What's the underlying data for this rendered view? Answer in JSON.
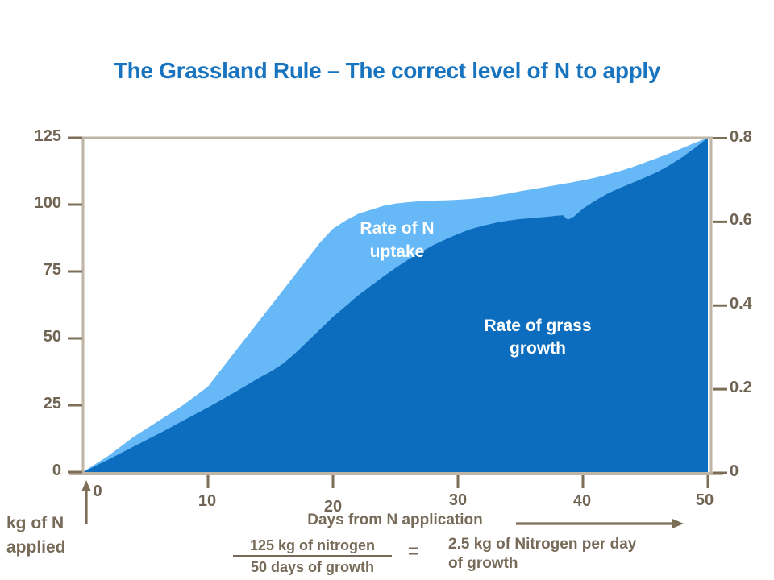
{
  "chart_data": {
    "type": "area",
    "title": "The Grassland Rule – The correct level of N to apply",
    "xlabel": "Days from N application",
    "ylabel_left": "kg of N applied",
    "xlim": [
      0,
      50
    ],
    "ylim_left": [
      0,
      125
    ],
    "ylim_right": [
      0,
      0.8
    ],
    "grid": false,
    "legend_position": "labels-inside-areas",
    "x_axis": {
      "title": "Days from N application",
      "ticks": [
        {
          "label": "0",
          "value": 0
        },
        {
          "label": "10",
          "value": 10
        },
        {
          "label": "20",
          "value": 20
        },
        {
          "label": "30",
          "value": 30
        },
        {
          "label": "40",
          "value": 40
        },
        {
          "label": "50",
          "value": 50
        }
      ]
    },
    "left_axis": {
      "title_line1": "kg of N",
      "title_line2": "applied",
      "ticks": [
        {
          "label": "0",
          "value": 0
        },
        {
          "label": "25",
          "value": 25
        },
        {
          "label": "50",
          "value": 50
        },
        {
          "label": "75",
          "value": 75
        },
        {
          "label": "100",
          "value": 100
        },
        {
          "label": "125",
          "value": 125
        }
      ]
    },
    "right_axis": {
      "ticks": [
        {
          "label": "0",
          "value": 0
        },
        {
          "label": "0.2",
          "value": 0.2
        },
        {
          "label": "0.4",
          "value": 0.4
        },
        {
          "label": "0.6",
          "value": 0.6
        },
        {
          "label": "0.8",
          "value": 0.8
        }
      ]
    },
    "series": [
      {
        "name": "Rate of N uptake",
        "fill": "#66B8F6",
        "points": [
          [
            0,
            0
          ],
          [
            1,
            3
          ],
          [
            2,
            6
          ],
          [
            3,
            9.5
          ],
          [
            4,
            13
          ],
          [
            5,
            16
          ],
          [
            6,
            19
          ],
          [
            7,
            22
          ],
          [
            8,
            25
          ],
          [
            9,
            28.5
          ],
          [
            10,
            32
          ],
          [
            11,
            38
          ],
          [
            12,
            44
          ],
          [
            13,
            50
          ],
          [
            14,
            56
          ],
          [
            15,
            62
          ],
          [
            16,
            68
          ],
          [
            17,
            74
          ],
          [
            18,
            80
          ],
          [
            19,
            86
          ],
          [
            20,
            91
          ],
          [
            21,
            94
          ],
          [
            22,
            96.5
          ],
          [
            23,
            98
          ],
          [
            24,
            99.5
          ],
          [
            25,
            100.4
          ],
          [
            26,
            100.9
          ],
          [
            27,
            101.3
          ],
          [
            28,
            101.5
          ],
          [
            29,
            101.6
          ],
          [
            30,
            101.8
          ],
          [
            31,
            102.1
          ],
          [
            32,
            102.6
          ],
          [
            33,
            103.3
          ],
          [
            34,
            104.1
          ],
          [
            35,
            105
          ],
          [
            36,
            105.8
          ],
          [
            37,
            106.6
          ],
          [
            38,
            107.4
          ],
          [
            39,
            108.2
          ],
          [
            40,
            109.1
          ],
          [
            41,
            110.1
          ],
          [
            42,
            111.3
          ],
          [
            43,
            112.6
          ],
          [
            44,
            114.1
          ],
          [
            45,
            115.8
          ],
          [
            46,
            117.5
          ],
          [
            47,
            119.3
          ],
          [
            48,
            121.2
          ],
          [
            49,
            123.2
          ],
          [
            50,
            125
          ]
        ]
      },
      {
        "name": "Rate of grass growth",
        "fill": "#0C6DBE",
        "points": [
          [
            0,
            0
          ],
          [
            1,
            2.3
          ],
          [
            2,
            4.6
          ],
          [
            3,
            7
          ],
          [
            4,
            9.4
          ],
          [
            5,
            11.8
          ],
          [
            6,
            14.2
          ],
          [
            7,
            16.7
          ],
          [
            8,
            19.2
          ],
          [
            9,
            21.7
          ],
          [
            10,
            24.2
          ],
          [
            11,
            26.8
          ],
          [
            12,
            29.5
          ],
          [
            13,
            32.2
          ],
          [
            14,
            35
          ],
          [
            15,
            37.5
          ],
          [
            16,
            40.5
          ],
          [
            17,
            44.5
          ],
          [
            18,
            49
          ],
          [
            19,
            53.5
          ],
          [
            20,
            58
          ],
          [
            21,
            62
          ],
          [
            22,
            66
          ],
          [
            23,
            69.5
          ],
          [
            24,
            73
          ],
          [
            25,
            76.3
          ],
          [
            26,
            79.4
          ],
          [
            27,
            82.2
          ],
          [
            28,
            84.8
          ],
          [
            29,
            87
          ],
          [
            30,
            89
          ],
          [
            31,
            90.8
          ],
          [
            32,
            92.1
          ],
          [
            33,
            93.2
          ],
          [
            34,
            94
          ],
          [
            35,
            94.6
          ],
          [
            36,
            95
          ],
          [
            37,
            95.4
          ],
          [
            38,
            95.9
          ],
          [
            38.4,
            96
          ],
          [
            38.8,
            94.3
          ],
          [
            39.3,
            95.6
          ],
          [
            40,
            98.5
          ],
          [
            41,
            101.5
          ],
          [
            42,
            104.2
          ],
          [
            43,
            106.3
          ],
          [
            44,
            108.2
          ],
          [
            45,
            110.2
          ],
          [
            46,
            112.3
          ],
          [
            47,
            114.9
          ],
          [
            48,
            117.9
          ],
          [
            49,
            121.3
          ],
          [
            50,
            125
          ]
        ]
      }
    ]
  },
  "labels": {
    "uptake_line1": "Rate of N",
    "uptake_line2": "uptake",
    "growth_line1": "Rate of grass",
    "growth_line2": "growth"
  },
  "footer": {
    "fraction_numerator": "125 kg of nitrogen",
    "fraction_denominator": "50 days of growth",
    "equals": "=",
    "result_line1": "2.5 kg of Nitrogen per day",
    "result_line2": "of growth"
  },
  "colors": {
    "title": "#1874BE",
    "axis_line": "#BEB5A6",
    "tick": "#7D6E58",
    "tick_label": "#6F6353",
    "annotation": "#776A58",
    "area_label_text": "#FFFFFF",
    "uptake_fill": "#66B8F6",
    "growth_fill": "#0C6DBE"
  }
}
